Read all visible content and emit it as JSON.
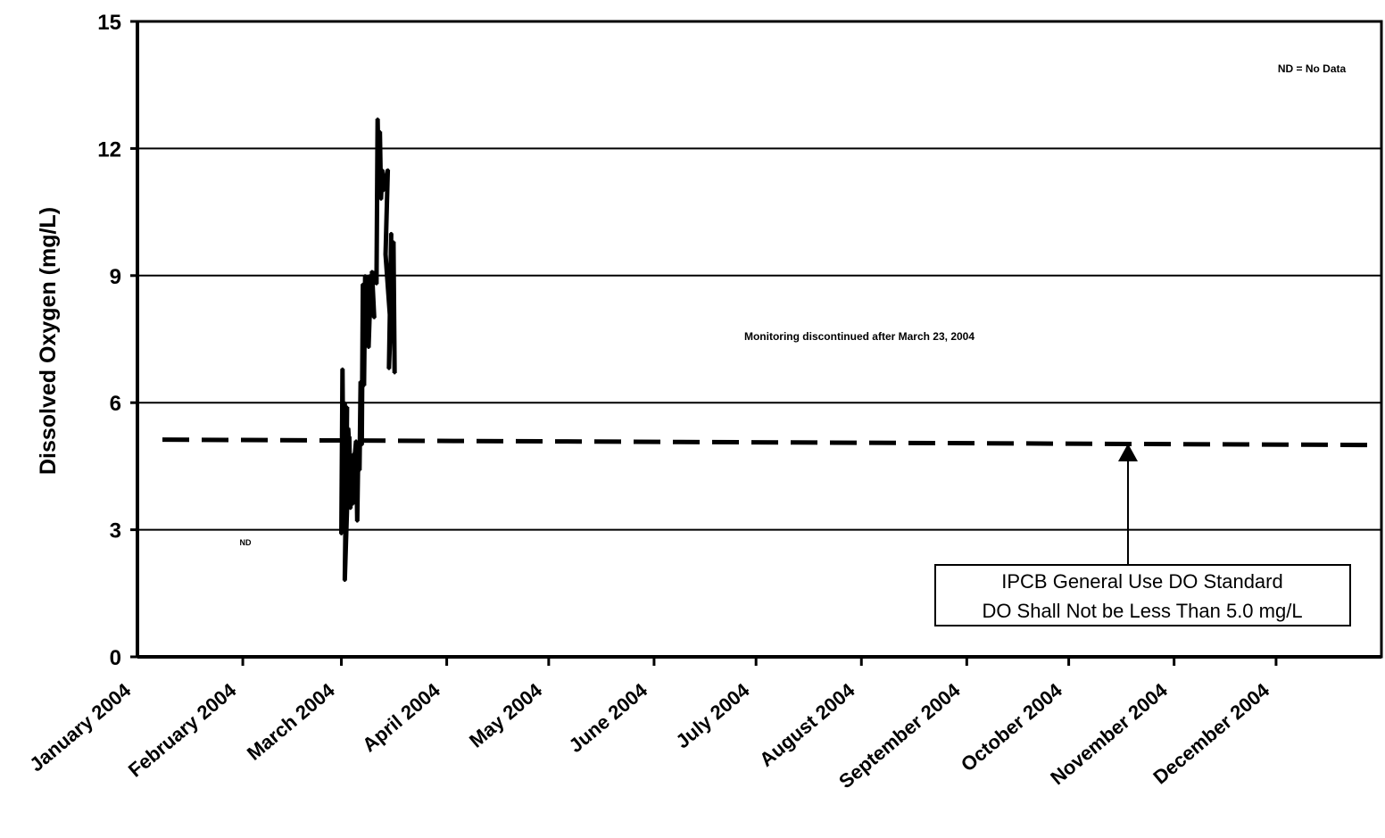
{
  "chart_data": {
    "type": "line",
    "title": "",
    "xlabel": "",
    "ylabel": "Dissolved Oxygen (mg/L)",
    "ylim": [
      0,
      15
    ],
    "yticks": [
      "0",
      "3",
      "6",
      "9",
      "12",
      "15"
    ],
    "ytick_values": [
      0,
      3,
      6,
      9,
      12,
      15
    ],
    "x_range_days": [
      0,
      366
    ],
    "categories": [
      "January 2004",
      "February 2004",
      "March 2004",
      "April 2004",
      "May 2004",
      "June 2004",
      "July 2004",
      "August 2004",
      "September 2004",
      "October 2004",
      "November 2004",
      "December 2004"
    ],
    "month_start_days": [
      31,
      60,
      91,
      121,
      152,
      182,
      213,
      244,
      274,
      305,
      335
    ],
    "grid": "horizontal",
    "series": [
      {
        "values": [
          {
            "x": "2004-03-01",
            "y": 2.9
          },
          {
            "x": "2004-03-01",
            "y": 6.8
          },
          {
            "x": "2004-03-01",
            "y": 3.2
          },
          {
            "x": "2004-03-02",
            "y": 6.0
          },
          {
            "x": "2004-03-02",
            "y": 2.8
          },
          {
            "x": "2004-03-02",
            "y": 5.9
          },
          {
            "x": "2004-03-02",
            "y": 1.8
          },
          {
            "x": "2004-03-03",
            "y": 5.2
          },
          {
            "x": "2004-03-03",
            "y": 3.5
          },
          {
            "x": "2004-03-03",
            "y": 5.4
          },
          {
            "x": "2004-03-04",
            "y": 3.6
          },
          {
            "x": "2004-03-04",
            "y": 4.8
          },
          {
            "x": "2004-03-04",
            "y": 3.9
          },
          {
            "x": "2004-03-05",
            "y": 5.1
          },
          {
            "x": "2004-03-05",
            "y": 3.2
          },
          {
            "x": "2004-03-06",
            "y": 5.0
          },
          {
            "x": "2004-03-06",
            "y": 4.4
          },
          {
            "x": "2004-03-06",
            "y": 6.5
          },
          {
            "x": "2004-03-07",
            "y": 5.0
          },
          {
            "x": "2004-03-07",
            "y": 8.8
          },
          {
            "x": "2004-03-07",
            "y": 6.4
          },
          {
            "x": "2004-03-08",
            "y": 9.0
          },
          {
            "x": "2004-03-08",
            "y": 7.7
          },
          {
            "x": "2004-03-09",
            "y": 8.9
          },
          {
            "x": "2004-03-09",
            "y": 7.3
          },
          {
            "x": "2004-03-09",
            "y": 9.0
          },
          {
            "x": "2004-03-10",
            "y": 8.0
          },
          {
            "x": "2004-03-10",
            "y": 9.1
          },
          {
            "x": "2004-03-11",
            "y": 8.8
          },
          {
            "x": "2004-03-11",
            "y": 12.7
          },
          {
            "x": "2004-03-12",
            "y": 11.2
          },
          {
            "x": "2004-03-12",
            "y": 12.4
          },
          {
            "x": "2004-03-12",
            "y": 10.8
          },
          {
            "x": "2004-03-13",
            "y": 11.5
          },
          {
            "x": "2004-03-13",
            "y": 11.0
          },
          {
            "x": "2004-03-14",
            "y": 11.5
          },
          {
            "x": "2004-03-14",
            "y": 9.5
          },
          {
            "x": "2004-03-15",
            "y": 8.0
          },
          {
            "x": "2004-03-15",
            "y": 10.0
          },
          {
            "x": "2004-03-15",
            "y": 6.8
          },
          {
            "x": "2004-03-16",
            "y": 9.8
          },
          {
            "x": "2004-03-16",
            "y": 6.7
          }
        ]
      }
    ],
    "reference_line": {
      "y": 5.0,
      "style": "dashed"
    },
    "annotations": {
      "legend_note": "ND = No Data",
      "monitoring_note": "Monitoring discontinued after March 23, 2004",
      "nd_marker": "ND",
      "callout_line1": "IPCB General Use DO Standard",
      "callout_line2": "DO Shall Not be Less Than 5.0 mg/L"
    },
    "colors": {
      "line": "#000000",
      "background": "#ffffff",
      "grid": "#000000"
    }
  }
}
